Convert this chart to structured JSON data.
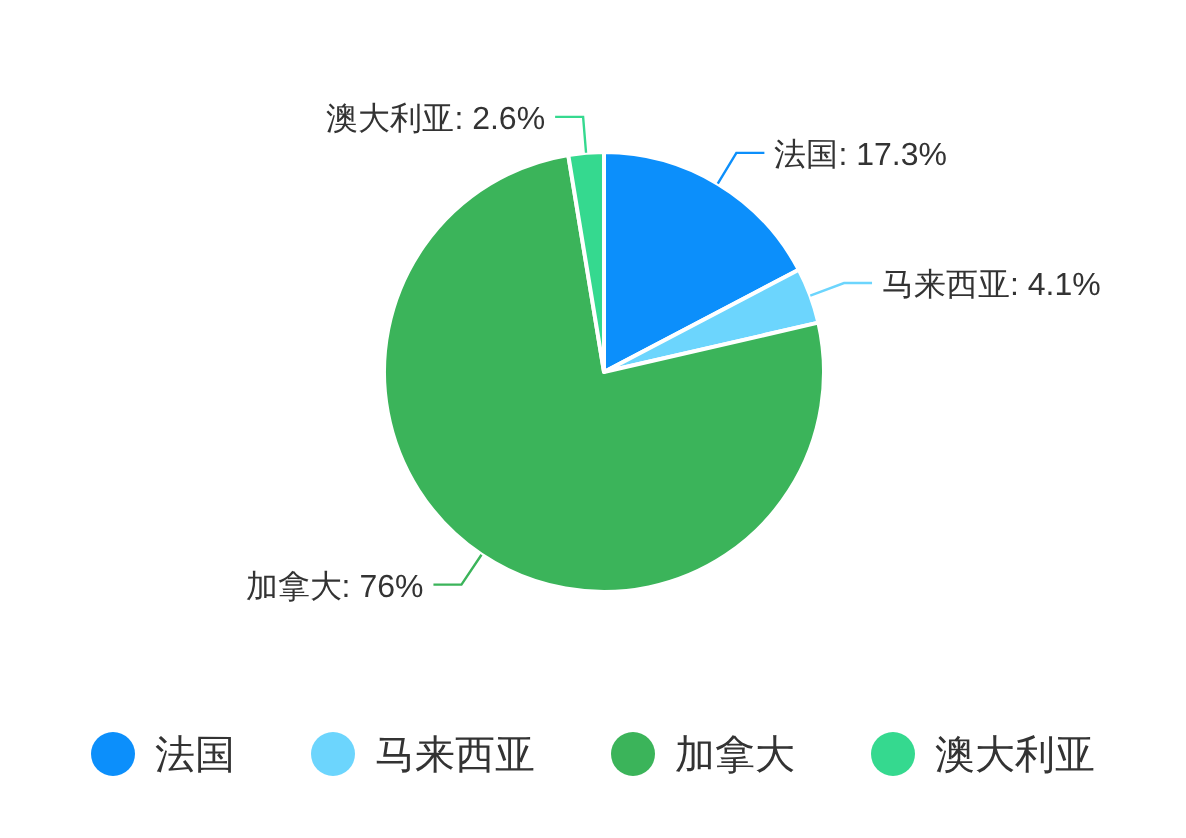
{
  "chart_data": {
    "type": "pie",
    "categories": [
      "法国",
      "马来西亚",
      "加拿大",
      "澳大利亚"
    ],
    "values": [
      17.3,
      4.1,
      76,
      2.6
    ],
    "value_labels": [
      "法国: 17.3%",
      "马来西亚: 4.1%",
      "加拿大: 76%",
      "澳大利亚: 2.6%"
    ],
    "colors": [
      "#0c8ffb",
      "#6cd5fd",
      "#3bb45a",
      "#35d98f"
    ],
    "legend": "bottom"
  }
}
